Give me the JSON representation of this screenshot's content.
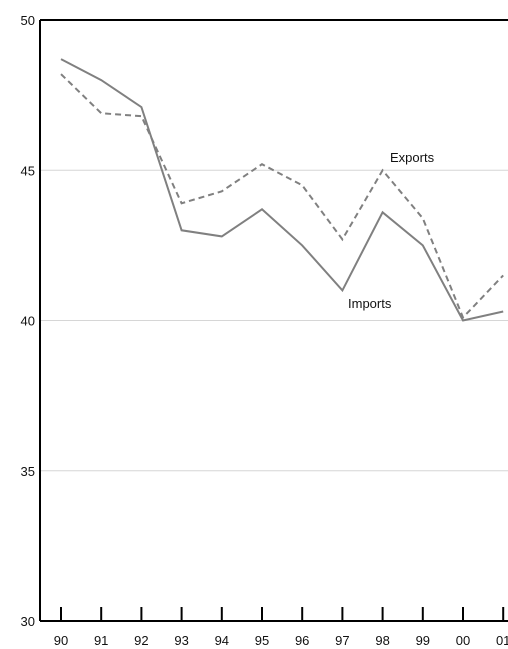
{
  "chart_data": {
    "type": "line",
    "x": [
      "90",
      "91",
      "92",
      "93",
      "94",
      "95",
      "96",
      "97",
      "98",
      "99",
      "00",
      "01"
    ],
    "ylim": [
      30,
      50
    ],
    "yticks": [
      "30",
      "35",
      "40",
      "45",
      "50"
    ],
    "grid": true,
    "series": [
      {
        "name": "Imports",
        "values": [
          48.7,
          48.0,
          47.1,
          43.0,
          42.8,
          43.7,
          42.5,
          41.0,
          43.6,
          42.5,
          40.0,
          40.3
        ],
        "color": "#808080",
        "style": "solid"
      },
      {
        "name": "Exports",
        "values": [
          48.2,
          46.9,
          46.8,
          43.9,
          44.3,
          45.2,
          44.5,
          42.7,
          45.0,
          43.4,
          40.1,
          41.5
        ],
        "color": "#808080",
        "style": "dashed"
      }
    ]
  }
}
